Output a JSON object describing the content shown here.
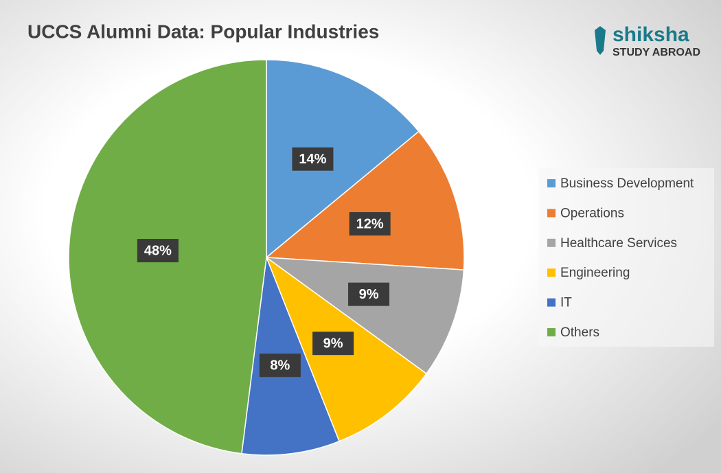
{
  "chart_data": {
    "type": "pie",
    "title": "UCCS Alumni Data: Popular Industries",
    "categories": [
      "Business Development",
      "Operations",
      "Healthcare Services",
      "Engineering",
      "IT",
      "Others"
    ],
    "values": [
      14,
      12,
      9,
      9,
      8,
      48
    ],
    "value_labels": [
      "14%",
      "12%",
      "9%",
      "9%",
      "8%",
      "48%"
    ],
    "colors": [
      "#5b9bd5",
      "#ed7d31",
      "#a5a5a5",
      "#ffc000",
      "#4472c4",
      "#70ad47"
    ],
    "legend": "right",
    "annotations": [
      "shiksha",
      "STUDY ABROAD"
    ]
  }
}
